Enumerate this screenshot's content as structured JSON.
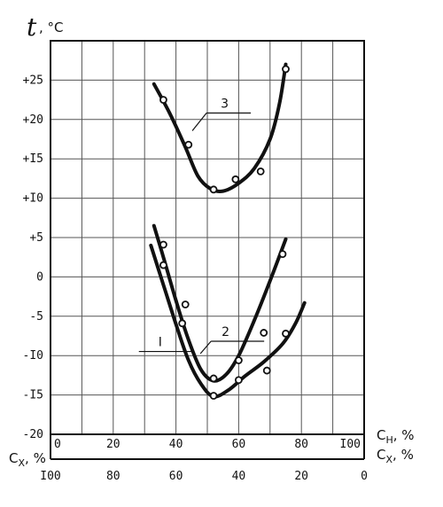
{
  "chart_data": {
    "type": "scatter",
    "ylabel": "t",
    "yunit": ", °C",
    "ylim": [
      -20,
      30
    ],
    "yticks": [
      "+25",
      "+20",
      "+I5",
      "+I0",
      "+5",
      "0",
      "-5",
      "-I0",
      "-I5",
      "-20"
    ],
    "ytick_values": [
      25,
      20,
      15,
      10,
      5,
      0,
      -5,
      -10,
      -15,
      -20
    ],
    "xlim": [
      0,
      100
    ],
    "x_top": {
      "label": "C",
      "sub": "H",
      "unit": ", %",
      "ticks": [
        "0",
        "20",
        "40",
        "60",
        "80",
        "I00"
      ],
      "tick_values": [
        0,
        20,
        40,
        60,
        80,
        100
      ]
    },
    "x_bottom": {
      "label": "C",
      "sub": "X",
      "unit": ", %",
      "ticks": [
        "I00",
        "80",
        "60",
        "40",
        "20",
        "0"
      ],
      "tick_values": [
        0,
        20,
        40,
        60,
        80,
        100
      ]
    },
    "x_left": {
      "label": "C",
      "sub": "X",
      "unit": ", %"
    },
    "grid": true,
    "series": [
      {
        "name": "3",
        "points": [
          [
            36,
            22.5
          ],
          [
            44,
            16.8
          ],
          [
            52,
            11.1
          ],
          [
            59,
            12.4
          ],
          [
            67,
            13.4
          ],
          [
            75,
            26.4
          ]
        ],
        "curve": [
          [
            33,
            24.5
          ],
          [
            38,
            20.8
          ],
          [
            43,
            16.5
          ],
          [
            47,
            12.8
          ],
          [
            51,
            11.2
          ],
          [
            55,
            10.9
          ],
          [
            60,
            11.9
          ],
          [
            65,
            13.8
          ],
          [
            70,
            17.5
          ],
          [
            73,
            22
          ],
          [
            75,
            27
          ]
        ],
        "label_pos": [
          52,
          21.5
        ]
      },
      {
        "name": "2",
        "points": [
          [
            36,
            4.1
          ],
          [
            43,
            -3.5
          ],
          [
            52,
            -12.9
          ],
          [
            60,
            -10.6
          ],
          [
            74,
            2.9
          ]
        ],
        "curve": [
          [
            33,
            6.5
          ],
          [
            36,
            2.5
          ],
          [
            40,
            -3
          ],
          [
            44,
            -8
          ],
          [
            48,
            -11.8
          ],
          [
            52,
            -13.2
          ],
          [
            56,
            -12.4
          ],
          [
            60,
            -10
          ],
          [
            65,
            -5.5
          ],
          [
            70,
            -0.5
          ],
          [
            75,
            4.8
          ]
        ],
        "label_pos": [
          54,
          -7.5
        ]
      },
      {
        "name": "I",
        "points": [
          [
            36,
            1.5
          ],
          [
            42,
            -5.9
          ],
          [
            52,
            -15.1
          ],
          [
            60,
            -13.1
          ],
          [
            68,
            -7.1
          ],
          [
            69,
            -11.9
          ],
          [
            75,
            -7.2
          ]
        ],
        "curve": [
          [
            32,
            4
          ],
          [
            36,
            -1
          ],
          [
            40,
            -6
          ],
          [
            44,
            -10.6
          ],
          [
            48,
            -13.6
          ],
          [
            52,
            -15.2
          ],
          [
            57,
            -14.3
          ],
          [
            62,
            -12.6
          ],
          [
            68,
            -10.8
          ],
          [
            74,
            -8.5
          ],
          [
            78,
            -6
          ],
          [
            81,
            -3.3
          ]
        ],
        "label_pos": [
          31,
          -8.8
        ]
      }
    ]
  }
}
